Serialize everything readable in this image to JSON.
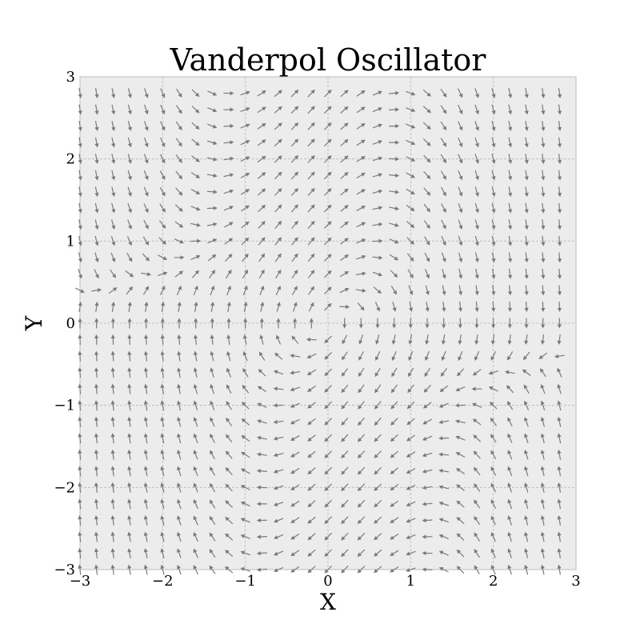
{
  "chart_data": {
    "type": "quiver",
    "title": "Vanderpol Oscillator",
    "xlabel": "X",
    "ylabel": "Y",
    "xlim": [
      -3,
      3
    ],
    "ylim": [
      -3,
      3
    ],
    "xticks": [
      -3,
      -2,
      -1,
      0,
      1,
      2,
      3
    ],
    "yticks": [
      -3,
      -2,
      -1,
      0,
      1,
      2,
      3
    ],
    "xtick_labels": [
      "−3",
      "−2",
      "−1",
      "0",
      "1",
      "2",
      "3"
    ],
    "ytick_labels": [
      "−3",
      "−2",
      "−1",
      "0",
      "1",
      "2",
      "3"
    ],
    "grid": true,
    "grid_step": 0.2,
    "arrow_color": "#7a7a7a",
    "background_color": "#ececec",
    "field": {
      "dx": "y",
      "dy": "mu*(1 - x^2)*y - x",
      "mu": 1.0,
      "normalized": true
    }
  }
}
